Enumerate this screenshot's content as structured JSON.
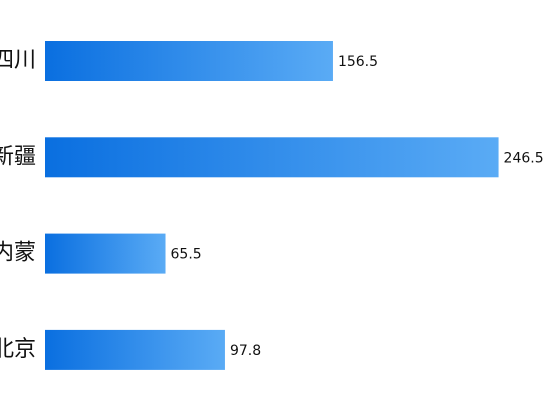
{
  "chart_data": {
    "type": "bar",
    "orientation": "horizontal",
    "categories": [
      "四川",
      "新疆",
      "内蒙",
      "北京"
    ],
    "values": [
      156.5,
      246.5,
      65.5,
      97.8
    ],
    "color": [
      "#0a6fe0",
      "#5aabf5"
    ]
  }
}
